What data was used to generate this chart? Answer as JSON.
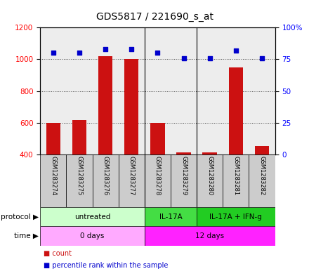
{
  "title": "GDS5817 / 221690_s_at",
  "samples": [
    "GSM1283274",
    "GSM1283275",
    "GSM1283276",
    "GSM1283277",
    "GSM1283278",
    "GSM1283279",
    "GSM1283280",
    "GSM1283281",
    "GSM1283282"
  ],
  "count_values": [
    600,
    615,
    1020,
    1000,
    600,
    415,
    415,
    950,
    455
  ],
  "percentile_values": [
    80,
    80,
    83,
    83,
    80,
    76,
    76,
    82,
    76
  ],
  "ylim_left": [
    400,
    1200
  ],
  "ylim_right": [
    0,
    100
  ],
  "yticks_left": [
    400,
    600,
    800,
    1000,
    1200
  ],
  "yticks_right": [
    0,
    25,
    50,
    75,
    100
  ],
  "ytick_labels_right": [
    "0",
    "25",
    "50",
    "75",
    "100%"
  ],
  "bar_color": "#cc1111",
  "dot_color": "#0000cc",
  "bar_width": 0.55,
  "protocol_groups": [
    {
      "label": "untreated",
      "start": 0,
      "end": 4,
      "color": "#ccffcc"
    },
    {
      "label": "IL-17A",
      "start": 4,
      "end": 6,
      "color": "#44dd44"
    },
    {
      "label": "IL-17A + IFN-g",
      "start": 6,
      "end": 9,
      "color": "#22cc22"
    }
  ],
  "time_groups": [
    {
      "label": "0 days",
      "start": 0,
      "end": 4,
      "color": "#ffaaff"
    },
    {
      "label": "12 days",
      "start": 4,
      "end": 9,
      "color": "#ff22ff"
    }
  ],
  "protocol_label": "protocol",
  "time_label": "time",
  "legend_count": "count",
  "legend_pct": "percentile rank within the sample",
  "bar_bottom": 400,
  "sample_box_color": "#cccccc",
  "left_label_color": "#000000"
}
